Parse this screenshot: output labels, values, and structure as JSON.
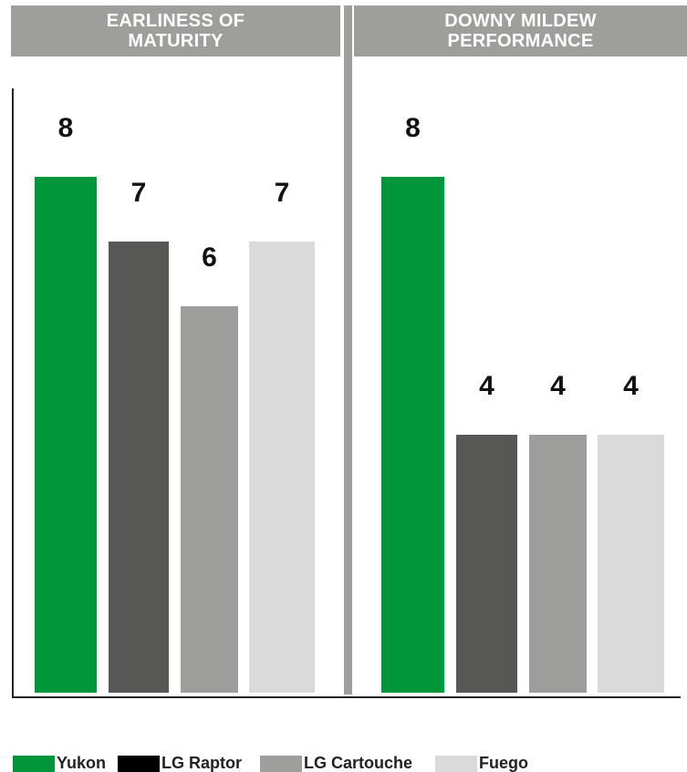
{
  "chart_data": [
    {
      "type": "bar",
      "title": "EARLINESS OF MATURITY",
      "categories": [
        "Yukon",
        "LG Raptor",
        "LG Cartouche",
        "Fuego"
      ],
      "values": [
        8,
        7,
        6,
        7
      ],
      "ylim": [
        0,
        10
      ]
    },
    {
      "type": "bar",
      "title": "DOWNY MILDEW PERFORMANCE",
      "categories": [
        "Yukon",
        "LG Raptor",
        "LG Cartouche",
        "Fuego"
      ],
      "values": [
        8,
        4,
        4,
        4
      ],
      "ylim": [
        0,
        10
      ]
    }
  ],
  "legend": [
    {
      "label": "Yukon",
      "color": "#009639"
    },
    {
      "label": "LG Raptor",
      "color": "#000000"
    },
    {
      "label": "LG Cartouche",
      "color": "#9e9e9c"
    },
    {
      "label": "Fuego",
      "color": "#dadada"
    }
  ],
  "bar_colors": [
    "#009639",
    "#575756",
    "#9d9d9b",
    "#dadada"
  ]
}
